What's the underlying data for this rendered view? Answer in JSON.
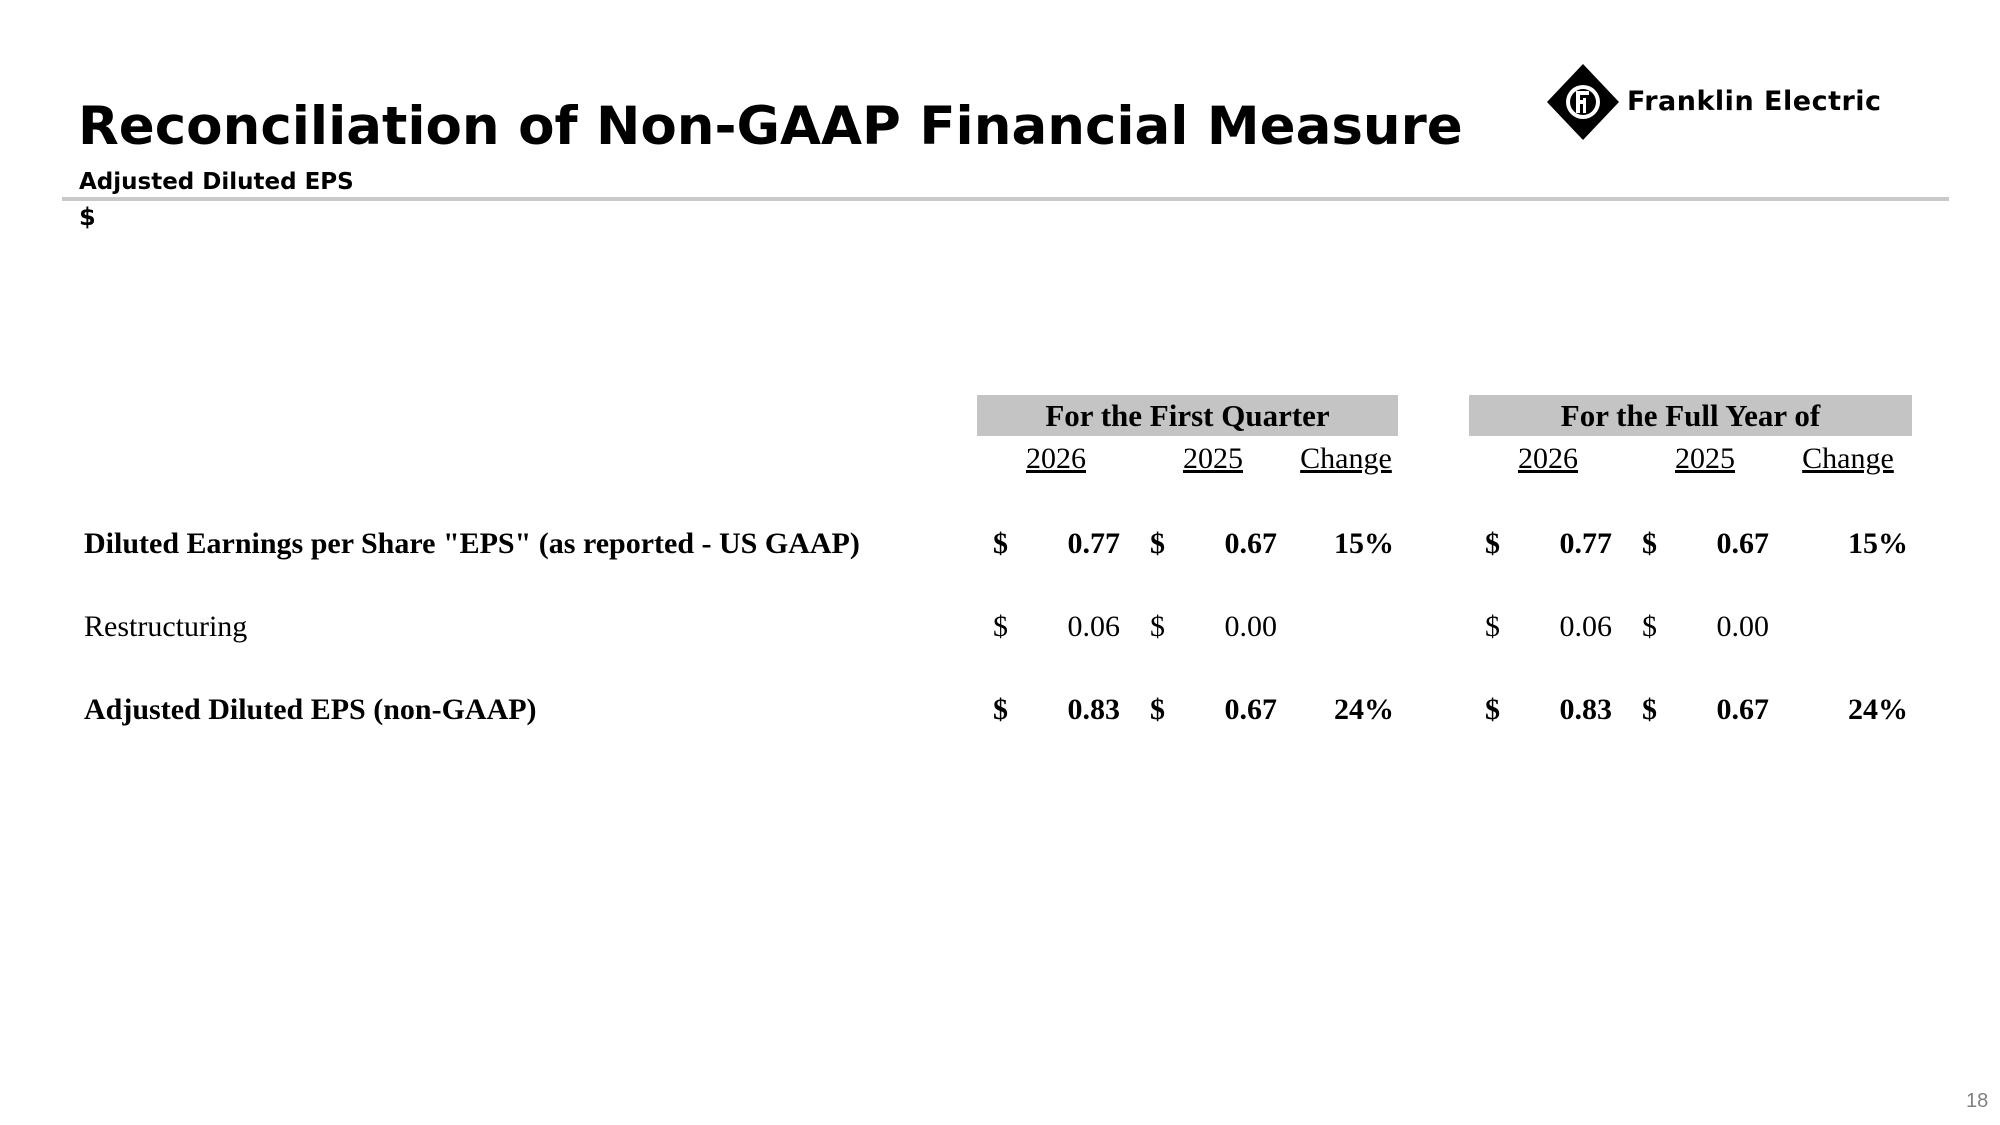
{
  "header": {
    "title": "Reconciliation of Non-GAAP Financial Measure",
    "subtitle": "Adjusted Diluted EPS",
    "unit": "$",
    "logo_text": "Franklin Electric"
  },
  "table": {
    "groups": [
      {
        "label": "For the First Quarter",
        "years": [
          "2026",
          "2025"
        ],
        "change_label": "Change"
      },
      {
        "label": "For the Full Year of",
        "years": [
          "2026",
          "2025"
        ],
        "change_label": "Change"
      }
    ],
    "rows": [
      {
        "label": "Diluted Earnings per Share \"EPS\" (as reported - US GAAP)",
        "bold": true,
        "q": {
          "cur1": "$",
          "v1": "0.77",
          "cur2": "$",
          "v2": "0.67",
          "change": "15%"
        },
        "fy": {
          "cur1": "$",
          "v1": "0.77",
          "cur2": "$",
          "v2": "0.67",
          "change": "15%"
        }
      },
      {
        "label": "Restructuring",
        "bold": false,
        "q": {
          "cur1": "$",
          "v1": "0.06",
          "cur2": "$",
          "v2": "0.00",
          "change": ""
        },
        "fy": {
          "cur1": "$",
          "v1": "0.06",
          "cur2": "$",
          "v2": "0.00",
          "change": ""
        }
      },
      {
        "label": "Adjusted Diluted EPS (non-GAAP)",
        "bold": true,
        "q": {
          "cur1": "$",
          "v1": "0.83",
          "cur2": "$",
          "v2": "0.67",
          "change": "24%"
        },
        "fy": {
          "cur1": "$",
          "v1": "0.83",
          "cur2": "$",
          "v2": "0.67",
          "change": "24%"
        }
      }
    ]
  },
  "footer": {
    "page_number": "18"
  }
}
